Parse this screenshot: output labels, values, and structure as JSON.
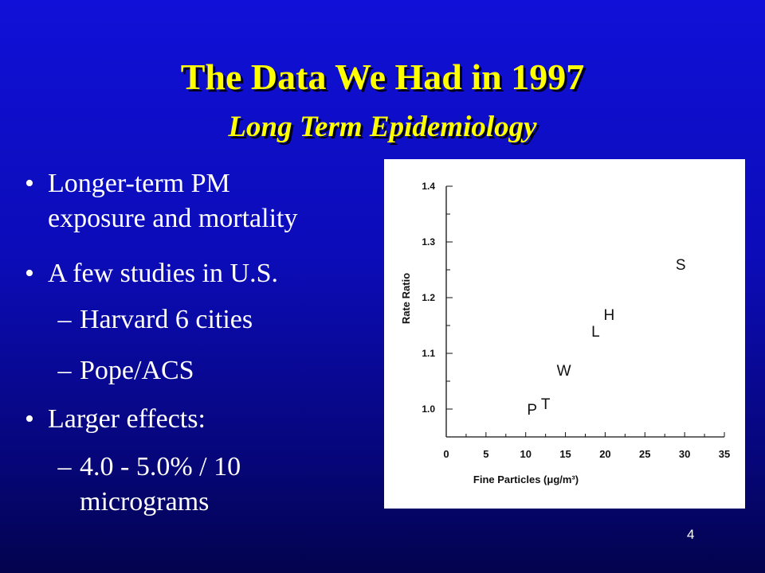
{
  "slide": {
    "title": "The Data We Had in 1997",
    "subtitle": "Long Term Epidemiology",
    "page_number": "4",
    "bullets": [
      {
        "marker": "•",
        "lines": [
          "Longer-term PM",
          "exposure and mortality"
        ]
      },
      {
        "marker": "•",
        "lines": [
          "A few studies in U.S."
        ]
      },
      {
        "marker": "–",
        "lines": [
          "Harvard 6 cities"
        ]
      },
      {
        "marker": "–",
        "lines": [
          "Pope/ACS"
        ]
      },
      {
        "marker": "•",
        "lines": [
          "Larger effects:"
        ]
      },
      {
        "marker": "–",
        "lines": [
          "4.0 - 5.0% / 10",
          "micrograms"
        ]
      }
    ]
  },
  "chart_data": {
    "type": "scatter",
    "xlabel": "Fine Particles (μg/m³)",
    "ylabel": "Rate Ratio",
    "xlim": [
      0,
      35
    ],
    "ylim": [
      0.95,
      1.45
    ],
    "xticks": [
      "0",
      "5",
      "10",
      "15",
      "20",
      "25",
      "30",
      "35"
    ],
    "yticks": [
      "1.0",
      "1.1",
      "1.2",
      "1.3",
      "1.4"
    ],
    "xtick_values": [
      0,
      5,
      10,
      15,
      20,
      25,
      30,
      35
    ],
    "ytick_values": [
      1.0,
      1.1,
      1.2,
      1.3,
      1.4
    ],
    "points": [
      {
        "label": "P",
        "x": 10.8,
        "y": 1.0
      },
      {
        "label": "T",
        "x": 12.5,
        "y": 1.01
      },
      {
        "label": "W",
        "x": 14.8,
        "y": 1.07
      },
      {
        "label": "L",
        "x": 18.8,
        "y": 1.14
      },
      {
        "label": "H",
        "x": 20.5,
        "y": 1.17
      },
      {
        "label": "S",
        "x": 29.5,
        "y": 1.26
      }
    ],
    "colors": {
      "ink": "#111111",
      "background": "#ffffff"
    }
  }
}
